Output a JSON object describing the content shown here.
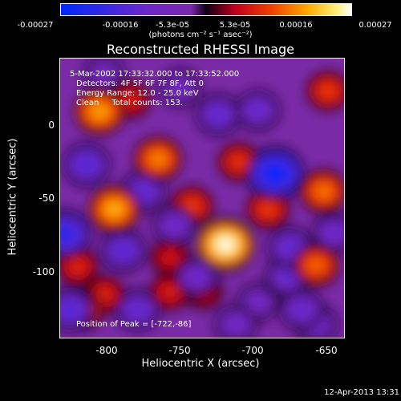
{
  "colorbar": {
    "ticks": [
      "-0.00027",
      "-0.00016",
      "-5.3e-05",
      "5.3e-05",
      "0.00016",
      "0.00027"
    ],
    "unit_label": "(photons cm⁻² s⁻¹ asec⁻²)",
    "range": [
      -0.00027,
      0.00027
    ]
  },
  "chart_data": {
    "type": "heatmap",
    "title": "Reconstructed RHESSI Image",
    "xlabel": "Heliocentric X (arcsec)",
    "ylabel": "Heliocentric Y (arcsec)",
    "xlim": [
      -835,
      -640
    ],
    "ylim": [
      -150,
      40
    ],
    "x_ticks": [
      -800,
      -750,
      -700,
      -650
    ],
    "y_ticks": [
      0,
      -50,
      -100
    ],
    "colormap": "blue-purple-red-orange-yellow-white",
    "info_lines": [
      "5-Mar-2002 17:33:32.000 to 17:33:52.000",
      "Detectors: 4F 5F 6F 7F 8F, Att 0",
      "Energy Range: 12.0 - 25.0 keV",
      "Clean     Total counts: 153."
    ],
    "peak_text": "Position of Peak = [-722,-86]",
    "peak": [
      -722,
      -86
    ],
    "features": [
      {
        "x": -722,
        "y": -86,
        "value": 0.00027
      },
      {
        "x": -798,
        "y": -62,
        "value": 0.0002
      },
      {
        "x": -808,
        "y": 4,
        "value": 0.00019
      },
      {
        "x": -768,
        "y": -28,
        "value": 0.00017
      },
      {
        "x": -655,
        "y": -50,
        "value": 0.00016
      },
      {
        "x": -660,
        "y": -100,
        "value": 0.00015
      },
      {
        "x": -745,
        "y": -60,
        "value": 0.00012
      },
      {
        "x": -693,
        "y": -62,
        "value": 0.00012
      },
      {
        "x": -713,
        "y": -30,
        "value": 0.00011
      },
      {
        "x": -652,
        "y": 18,
        "value": 0.00012
      },
      {
        "x": -820,
        "y": -130,
        "value": 0.00013
      },
      {
        "x": -805,
        "y": -120,
        "value": 0.0001
      },
      {
        "x": -787,
        "y": 12,
        "value": 9e-05
      },
      {
        "x": -823,
        "y": -101,
        "value": 0.0001
      },
      {
        "x": -760,
        "y": -95,
        "value": 8e-05
      },
      {
        "x": -760,
        "y": -118,
        "value": 9e-05
      },
      {
        "x": -737,
        "y": -118,
        "value": 7e-05
      },
      {
        "x": -688,
        "y": -38,
        "value": -0.00027
      },
      {
        "x": -832,
        "y": -79,
        "value": -0.00022
      },
      {
        "x": -828,
        "y": -130,
        "value": -0.00016
      },
      {
        "x": -792,
        "y": -90,
        "value": -0.00015
      },
      {
        "x": -782,
        "y": -130,
        "value": -0.00014
      },
      {
        "x": -817,
        "y": -32,
        "value": -0.00016
      },
      {
        "x": -778,
        "y": -50,
        "value": -0.00014
      },
      {
        "x": -757,
        "y": -73,
        "value": -0.00012
      },
      {
        "x": -742,
        "y": -108,
        "value": -0.00012
      },
      {
        "x": -727,
        "y": 2,
        "value": -0.00014
      },
      {
        "x": -700,
        "y": 5,
        "value": -0.00013
      },
      {
        "x": -678,
        "y": -88,
        "value": -0.00014
      },
      {
        "x": -680,
        "y": -108,
        "value": -0.00013
      },
      {
        "x": -670,
        "y": -130,
        "value": -0.00013
      },
      {
        "x": -648,
        "y": -78,
        "value": -0.00012
      },
      {
        "x": -660,
        "y": -140,
        "value": -0.00011
      },
      {
        "x": -715,
        "y": -140,
        "value": -0.00011
      },
      {
        "x": -753,
        "y": 20,
        "value": -0.0001
      },
      {
        "x": -700,
        "y": -125,
        "value": -0.0001
      },
      {
        "x": -805,
        "y": 30,
        "value": -9e-05
      }
    ]
  },
  "timestamp": "12-Apr-2013 13:31"
}
